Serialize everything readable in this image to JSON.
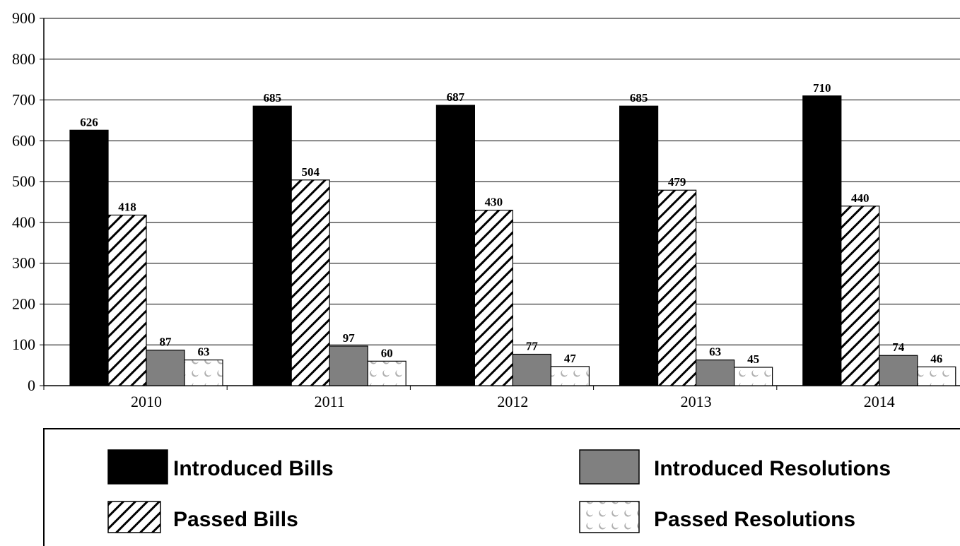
{
  "chart_data": {
    "type": "bar",
    "categories": [
      "2010",
      "2011",
      "2012",
      "2013",
      "2014"
    ],
    "series": [
      {
        "name": "Introduced Bills",
        "values": [
          626,
          685,
          687,
          685,
          710
        ],
        "fill": "#000000",
        "pattern": "solid"
      },
      {
        "name": "Passed Bills",
        "values": [
          418,
          504,
          430,
          479,
          440
        ],
        "fill": "#ffffff",
        "pattern": "diagonal-stripes"
      },
      {
        "name": "Introduced Resolutions",
        "values": [
          87,
          97,
          77,
          63,
          74
        ],
        "fill": "#808080",
        "pattern": "solid"
      },
      {
        "name": "Passed Resolutions",
        "values": [
          63,
          60,
          47,
          45,
          46
        ],
        "fill": "#ffffff",
        "pattern": "crescent-dots"
      }
    ],
    "yticks": [
      0,
      100,
      200,
      300,
      400,
      500,
      600,
      700,
      800,
      900
    ],
    "ylim": [
      0,
      900
    ],
    "grid": true,
    "legend_position": "bottom",
    "title": "",
    "xlabel": "",
    "ylabel": ""
  }
}
